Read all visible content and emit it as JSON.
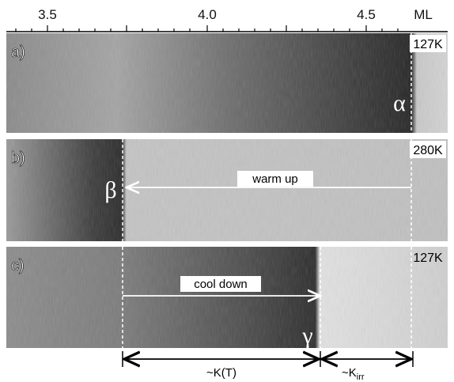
{
  "axis": {
    "ticks": [
      "3.5",
      "4.0",
      "4.5"
    ],
    "unit": "ML"
  },
  "panels": [
    {
      "label": "a)",
      "temperature": "127K",
      "marker": "α"
    },
    {
      "label": "b)",
      "temperature": "280K",
      "marker": "β",
      "arrow": "warm up"
    },
    {
      "label": "c)",
      "temperature": "127K",
      "marker": "γ",
      "arrow": "cool down"
    }
  ],
  "bottom": {
    "left": "~K(T)",
    "right": "~K",
    "right_sub": "irr"
  }
}
